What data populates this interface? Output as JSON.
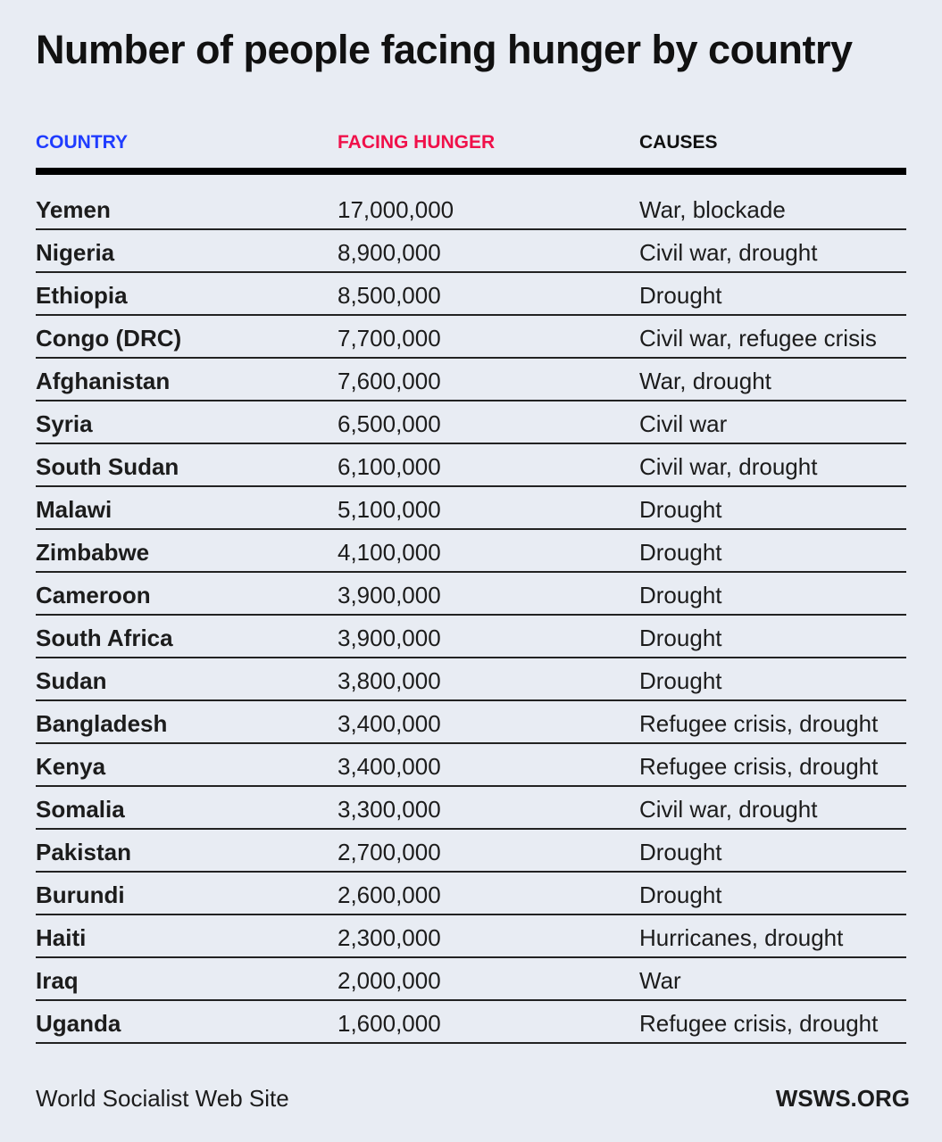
{
  "title": "Number of people facing hunger by country",
  "colors": {
    "country_header": "#1f3cff",
    "hunger_header": "#f0104a",
    "background": "#e8ecf3"
  },
  "chart_data": {
    "type": "table",
    "title": "Number of people facing hunger by country",
    "columns": [
      "COUNTRY",
      "FACING HUNGER",
      "CAUSES"
    ],
    "rows": [
      [
        "Yemen",
        "17,000,000",
        "War, blockade"
      ],
      [
        "Nigeria",
        "8,900,000",
        "Civil war, drought"
      ],
      [
        "Ethiopia",
        "8,500,000",
        "Drought"
      ],
      [
        "Congo (DRC)",
        "7,700,000",
        "Civil war, refugee crisis"
      ],
      [
        "Afghanistan",
        "7,600,000",
        "War, drought"
      ],
      [
        "Syria",
        "6,500,000",
        "Civil war"
      ],
      [
        "South Sudan",
        "6,100,000",
        "Civil war, drought"
      ],
      [
        "Malawi",
        "5,100,000",
        "Drought"
      ],
      [
        "Zimbabwe",
        "4,100,000",
        "Drought"
      ],
      [
        "Cameroon",
        "3,900,000",
        "Drought"
      ],
      [
        "South Africa",
        "3,900,000",
        "Drought"
      ],
      [
        "Sudan",
        "3,800,000",
        "Drought"
      ],
      [
        "Bangladesh",
        "3,400,000",
        "Refugee crisis, drought"
      ],
      [
        "Kenya",
        "3,400,000",
        "Refugee crisis, drought"
      ],
      [
        "Somalia",
        "3,300,000",
        "Civil war, drought"
      ],
      [
        "Pakistan",
        "2,700,000",
        "Drought"
      ],
      [
        "Burundi",
        "2,600,000",
        "Drought"
      ],
      [
        "Haiti",
        "2,300,000",
        "Hurricanes, drought"
      ],
      [
        "Iraq",
        "2,000,000",
        "War"
      ],
      [
        "Uganda",
        "1,600,000",
        "Refugee crisis, drought"
      ]
    ]
  },
  "footer": {
    "source": "World Socialist Web Site",
    "site": "WSWS.ORG"
  }
}
